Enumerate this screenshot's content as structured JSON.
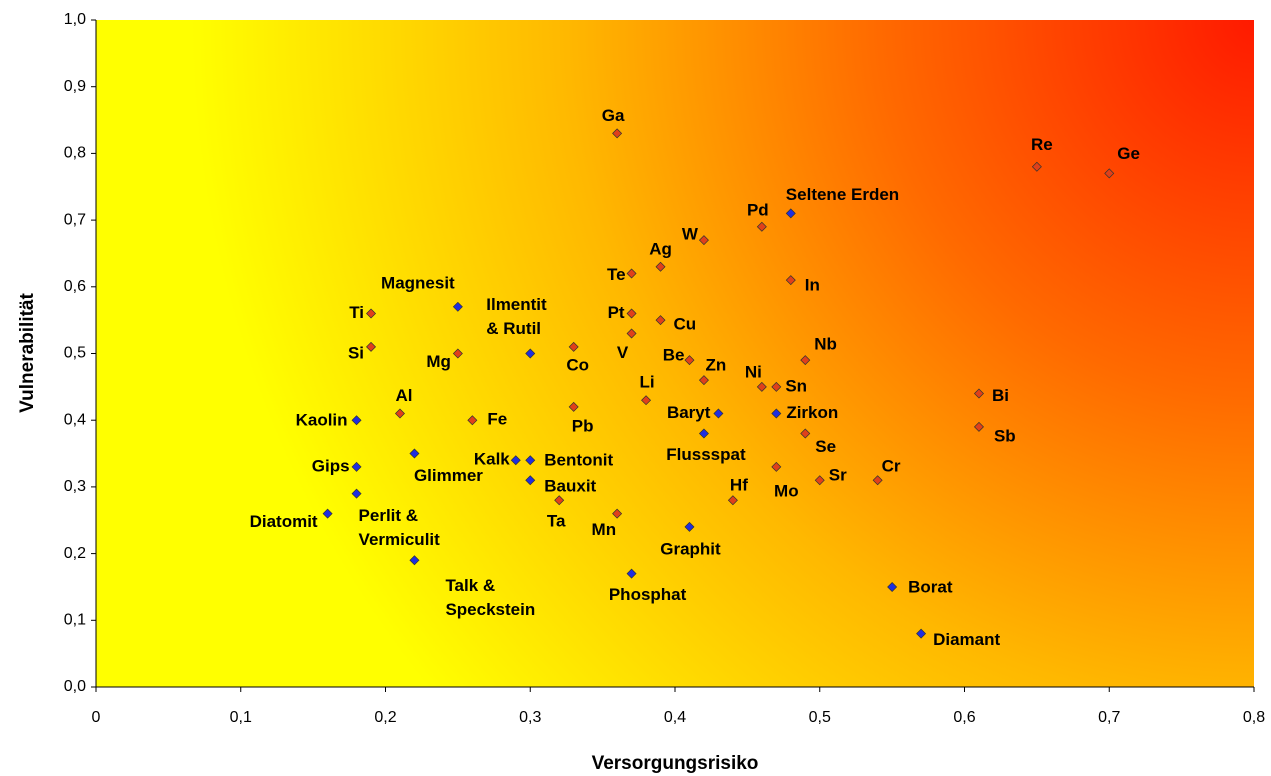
{
  "chart_data": {
    "type": "scatter",
    "x_label": "Versorgungsrisiko",
    "y_label": "Vulnerabilität",
    "xlim": [
      0,
      0.8
    ],
    "ylim": [
      0,
      1
    ],
    "xticks": [
      0,
      {
        "value": 0.1,
        "label": "0,1"
      },
      {
        "value": 0.2,
        "label": "0,2"
      },
      {
        "value": 0.3,
        "label": "0,3"
      },
      {
        "value": 0.4,
        "label": "0,4"
      },
      {
        "value": 0.5,
        "label": "0,5"
      },
      {
        "value": 0.6,
        "label": "0,6"
      },
      {
        "value": 0.7,
        "label": "0,7"
      },
      {
        "value": 0.8,
        "label": "0,8"
      }
    ],
    "yticks": [
      {
        "value": 0,
        "label": "0,0"
      },
      {
        "value": 0.1,
        "label": "0,1"
      },
      {
        "value": 0.2,
        "label": "0,2"
      },
      {
        "value": 0.3,
        "label": "0,3"
      },
      {
        "value": 0.4,
        "label": "0,4"
      },
      {
        "value": 0.5,
        "label": "0,5"
      },
      {
        "value": 0.6,
        "label": "0,6"
      },
      {
        "value": 0.7,
        "label": "0,7"
      },
      {
        "value": 0.8,
        "label": "0,8"
      },
      {
        "value": 0.9,
        "label": "0,9"
      },
      {
        "value": 1,
        "label": "1,0"
      }
    ],
    "series": [
      {
        "color": "#e0401a",
        "labels": [
          [
            "Ga"
          ],
          [
            "Re"
          ],
          [
            "Ge"
          ],
          [
            "Pd"
          ],
          [
            "W"
          ],
          [
            "Ag"
          ],
          [
            "Te"
          ],
          [
            "In"
          ],
          [
            "Ti"
          ],
          [
            "Pt"
          ],
          [
            "Cu"
          ],
          [
            "V"
          ],
          [
            "Si"
          ],
          [
            "Co"
          ],
          [
            "Mg"
          ],
          [
            "Be"
          ],
          [
            "Nb"
          ],
          [
            "Zn"
          ],
          [
            "Ni"
          ],
          [
            "Sn"
          ],
          [
            "Li"
          ],
          [
            "Bi"
          ],
          [
            "Al"
          ],
          [
            "Pb"
          ],
          [
            "Fe"
          ],
          [
            "Sb"
          ],
          [
            "Se"
          ],
          [
            "Mo"
          ],
          [
            "Sr"
          ],
          [
            "Cr"
          ],
          [
            "Hf"
          ],
          [
            "Ta"
          ],
          [
            "Mn"
          ]
        ],
        "x": [
          0.36,
          0.65,
          0.7,
          0.46,
          0.42,
          0.39,
          0.37,
          0.48,
          0.19,
          0.37,
          0.39,
          0.37,
          0.19,
          0.33,
          0.25,
          0.41,
          0.49,
          0.42,
          0.46,
          0.47,
          0.38,
          0.61,
          0.21,
          0.33,
          0.26,
          0.61,
          0.49,
          0.47,
          0.5,
          0.54,
          0.44,
          0.32,
          0.36
        ],
        "values": [
          0.83,
          0.78,
          0.77,
          0.69,
          0.67,
          0.63,
          0.62,
          0.61,
          0.56,
          0.56,
          0.55,
          0.53,
          0.51,
          0.51,
          0.5,
          0.49,
          0.49,
          0.46,
          0.45,
          0.45,
          0.43,
          0.44,
          0.41,
          0.42,
          0.4,
          0.39,
          0.38,
          0.33,
          0.31,
          0.31,
          0.28,
          0.28,
          0.26
        ]
      },
      {
        "color": "#1f2ee0",
        "labels": [
          [
            "Seltene Erden"
          ],
          [
            "Magnesit"
          ],
          [
            "Ilmentit",
            "& Rutil"
          ],
          [
            "Baryt"
          ],
          [
            "Kaolin"
          ],
          [
            "Flussspat"
          ],
          [
            "Glimmer"
          ],
          [
            "Zirkon"
          ],
          [
            "Kalk"
          ],
          [
            "Bentonit"
          ],
          [
            "Gips"
          ],
          [
            "Bauxit"
          ],
          [
            "Perlit &",
            "Vermiculit"
          ],
          [
            "Diatomit"
          ],
          [
            "Graphit"
          ],
          [
            "Talk &",
            "Speckstein"
          ],
          [
            "Phosphat"
          ],
          [
            "Borat"
          ],
          [
            "Diamant"
          ]
        ],
        "x": [
          0.48,
          0.25,
          0.3,
          0.43,
          0.18,
          0.42,
          0.22,
          0.47,
          0.29,
          0.3,
          0.18,
          0.3,
          0.18,
          0.16,
          0.41,
          0.22,
          0.37,
          0.55,
          0.57
        ],
        "values": [
          0.71,
          0.57,
          0.5,
          0.41,
          0.4,
          0.38,
          0.35,
          0.41,
          0.34,
          0.34,
          0.33,
          0.31,
          0.29,
          0.26,
          0.24,
          0.19,
          0.17,
          0.15,
          0.08
        ]
      }
    ]
  }
}
